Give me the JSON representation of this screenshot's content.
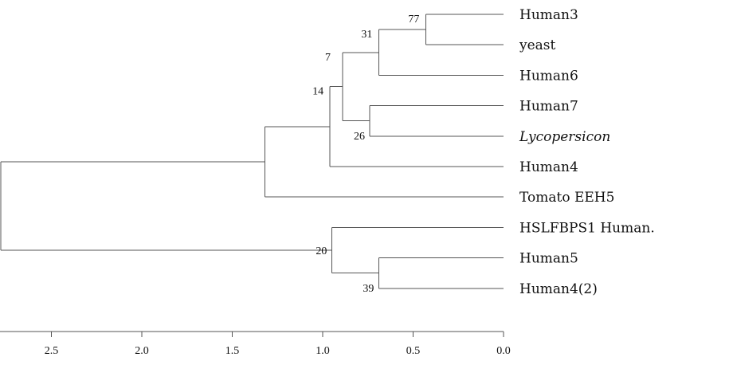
{
  "tree": {
    "axis": {
      "ticks": [
        "2.5",
        "2.0",
        "1.5",
        "1.0",
        "0.5",
        "0.0"
      ],
      "tick_values": [
        2.5,
        2.0,
        1.5,
        1.0,
        0.5,
        0.0
      ]
    },
    "leaves": [
      {
        "id": "human3",
        "label": "Human3",
        "italic": false
      },
      {
        "id": "yeast",
        "label": "yeast",
        "italic": false
      },
      {
        "id": "human6",
        "label": "Human6",
        "italic": false
      },
      {
        "id": "human7",
        "label": "Human7",
        "italic": false
      },
      {
        "id": "lycopersicon",
        "label": "Lycopersicon",
        "italic": true
      },
      {
        "id": "human4",
        "label": "Human4",
        "italic": false
      },
      {
        "id": "tomato-eeh5",
        "label": "Tomato EEH5",
        "italic": false
      },
      {
        "id": "hslfbps1-human",
        "label": "HSLFBPS1 Human.",
        "italic": false
      },
      {
        "id": "human5",
        "label": "Human5",
        "italic": false
      },
      {
        "id": "human4-2",
        "label": "Human4(2)",
        "italic": false
      }
    ],
    "nodes": [
      {
        "id": "n_h3_yeast",
        "children": [
          "human3",
          "yeast"
        ],
        "height": 0.43,
        "support": "77"
      },
      {
        "id": "n_31",
        "children": [
          "n_h3_yeast",
          "human6"
        ],
        "height": 0.69,
        "support": "31"
      },
      {
        "id": "n_26",
        "children": [
          "human7",
          "lycopersicon"
        ],
        "height": 0.74,
        "support": "26"
      },
      {
        "id": "n_7",
        "children": [
          "n_31",
          "n_26"
        ],
        "height": 0.89,
        "support": "7"
      },
      {
        "id": "n_14",
        "children": [
          "n_7",
          "human4"
        ],
        "height": 0.96,
        "support": "14"
      },
      {
        "id": "n_tomato",
        "children": [
          "n_14",
          "tomato-eeh5"
        ],
        "height": 1.32,
        "support": ""
      },
      {
        "id": "n_39",
        "children": [
          "human5",
          "human4-2"
        ],
        "height": 0.69,
        "support": "39"
      },
      {
        "id": "n_20",
        "children": [
          "hslfbps1-human",
          "n_39"
        ],
        "height": 0.95,
        "support": "20"
      },
      {
        "id": "root",
        "children": [
          "n_tomato",
          "n_20"
        ],
        "height": 2.78,
        "support": ""
      }
    ]
  }
}
